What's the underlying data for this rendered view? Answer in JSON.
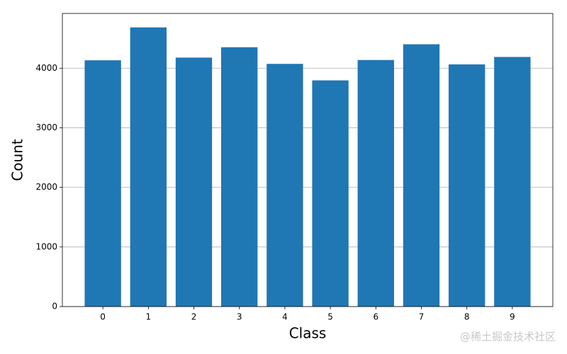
{
  "chart_data": {
    "type": "bar",
    "x": [
      0,
      1,
      2,
      3,
      4,
      5,
      6,
      7,
      8,
      9
    ],
    "values": [
      4132,
      4684,
      4177,
      4351,
      4072,
      3795,
      4137,
      4401,
      4063,
      4188
    ],
    "color": "#1f77b4",
    "xlabel": "Class",
    "ylabel": "Count",
    "xlim": [
      -0.89,
      9.89
    ],
    "xticks": [
      0,
      1,
      2,
      3,
      4,
      5,
      6,
      7,
      8,
      9
    ],
    "ylim": [
      0,
      4918
    ],
    "yticks": [
      0,
      1000,
      2000,
      3000,
      4000
    ],
    "grid": true
  },
  "watermark": "@稀土掘金技术社区"
}
